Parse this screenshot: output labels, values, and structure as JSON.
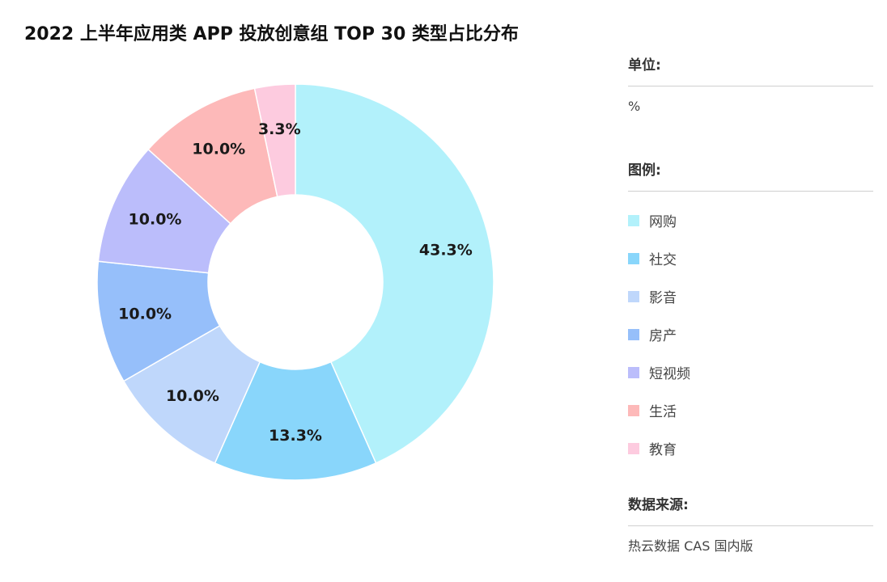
{
  "title": "2022 上半年应用类 APP 投放创意组 TOP 30 类型占比分布",
  "unit": {
    "heading": "单位:",
    "value": "%"
  },
  "legend": {
    "heading": "图例:"
  },
  "source": {
    "heading": "数据来源:",
    "value": "热云数据 CAS 国内版"
  },
  "chart_data": {
    "type": "pie",
    "style": "donut",
    "title": "2022 上半年应用类 APP 投放创意组 TOP 30 类型占比分布",
    "unit": "%",
    "legend_position": "right",
    "categories": [
      "网购",
      "社交",
      "影音",
      "房产",
      "短视频",
      "生活",
      "教育"
    ],
    "values": [
      43.3,
      13.3,
      10.0,
      10.0,
      10.0,
      10.0,
      3.3
    ],
    "labels": [
      "43.3%",
      "13.3%",
      "10.0%",
      "10.0%",
      "10.0%",
      "10.0%",
      "3.3%"
    ],
    "colors": [
      "#b2f1fb",
      "#89d6fb",
      "#bfd7fb",
      "#96bffa",
      "#bbbdfb",
      "#fdb9b9",
      "#fdcbdf"
    ]
  }
}
